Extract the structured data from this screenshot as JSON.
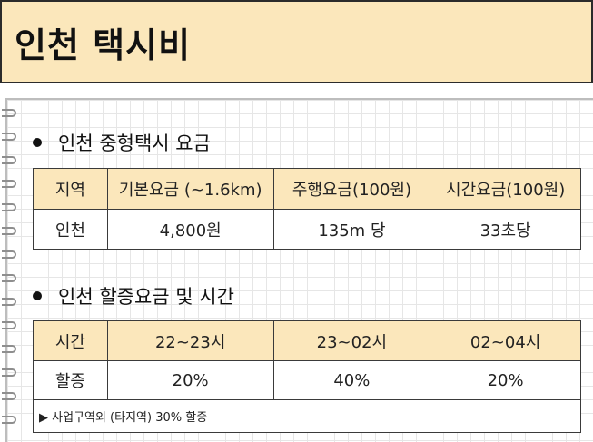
{
  "title": "인천 택시비",
  "section1": {
    "heading": "인천 중형택시 요금",
    "headers": [
      "지역",
      "기본요금 (~1.6km)",
      "주행요금(100원)",
      "시간요금(100원)"
    ],
    "row": [
      "인천",
      "4,800원",
      "135m 당",
      "33초당"
    ]
  },
  "section2": {
    "heading": "인천 할증요금 및 시간",
    "headers": [
      "시간",
      "22~23시",
      "23~02시",
      "02~04시"
    ],
    "row": [
      "할증",
      "20%",
      "40%",
      "20%"
    ],
    "note": "▶ 사업구역외 (타지역) 30% 할증"
  },
  "colors": {
    "header_fill": "#fbe7bb",
    "border": "#3a3a3a"
  }
}
